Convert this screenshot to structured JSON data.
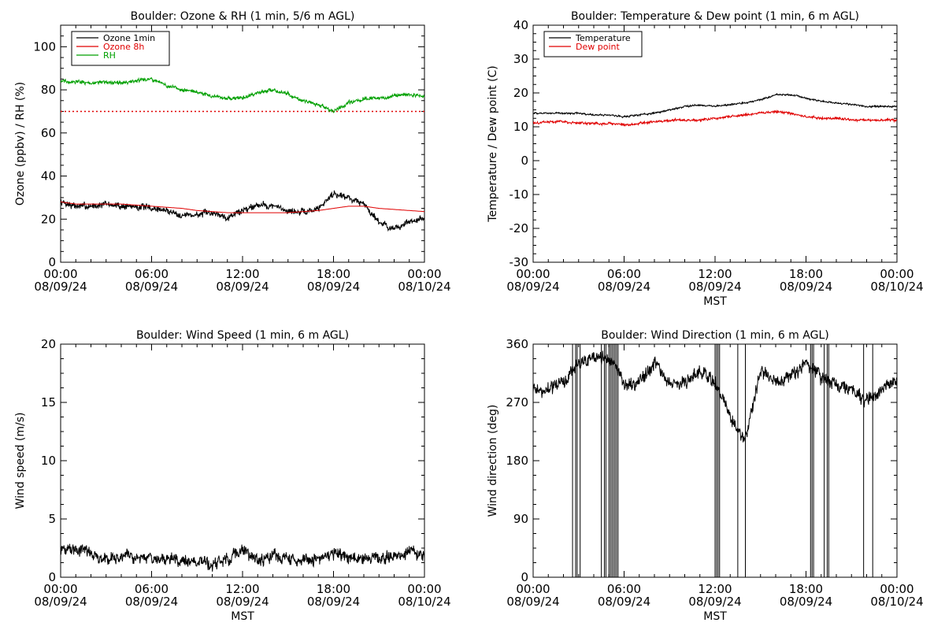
{
  "chart_data": [
    {
      "type": "line",
      "title": "Boulder: Ozone & RH (1 min, 5/6 m AGL)",
      "ylabel": "Ozone (ppbv) / RH (%)",
      "xlabel": "",
      "ylim": [
        0,
        110
      ],
      "yticks": [
        "0",
        "20",
        "40",
        "60",
        "80",
        "100"
      ],
      "ytick_values": [
        0,
        20,
        40,
        60,
        80,
        100
      ],
      "xticks": [
        {
          "time": "00:00",
          "date": "08/09/24"
        },
        {
          "time": "06:00",
          "date": "08/09/24"
        },
        {
          "time": "12:00",
          "date": "08/09/24"
        },
        {
          "time": "18:00",
          "date": "08/09/24"
        },
        {
          "time": "00:00",
          "date": "08/10/24"
        }
      ],
      "x_hours": [
        0,
        1,
        2,
        3,
        4,
        5,
        6,
        7,
        8,
        9,
        10,
        11,
        12,
        13,
        14,
        15,
        16,
        17,
        18,
        19,
        20,
        21,
        22,
        23,
        24
      ],
      "legend": [
        "Ozone 1min",
        "Ozone 8h",
        "RH"
      ],
      "legend_placement": "top-left",
      "reference_line": {
        "y": 70,
        "color": "#e00000",
        "style": "dotted"
      },
      "series": [
        {
          "name": "Ozone 1min",
          "color": "#000000",
          "noise": 1.8,
          "values": [
            28,
            26,
            26,
            27,
            26,
            26,
            25,
            24,
            22,
            22,
            23,
            21,
            24,
            27,
            26,
            24,
            23,
            25,
            32,
            30,
            27,
            19,
            15,
            19,
            20
          ]
        },
        {
          "name": "Ozone 8h",
          "color": "#e00000",
          "noise": 0,
          "values": [
            28,
            27,
            27,
            27,
            27,
            26.5,
            26,
            25.5,
            25,
            24,
            23.5,
            23,
            23,
            23,
            23,
            23,
            23.5,
            24,
            25,
            26,
            26,
            25,
            24.5,
            24,
            23.5
          ]
        },
        {
          "name": "RH",
          "color": "#00a000",
          "noise": 1.0,
          "values": [
            84,
            84,
            83,
            84,
            83,
            84,
            85,
            82,
            80,
            79,
            77,
            76,
            76,
            79,
            80,
            78,
            75,
            73,
            70,
            74,
            76,
            76,
            77,
            78,
            77
          ]
        }
      ]
    },
    {
      "type": "line",
      "title": "Boulder: Temperature & Dew point (1 min, 6 m AGL)",
      "ylabel": "Temperature / Dew point (C)",
      "xlabel": "MST",
      "ylim": [
        -30,
        40
      ],
      "yticks": [
        "-30",
        "-20",
        "-10",
        "0",
        "10",
        "20",
        "30",
        "40"
      ],
      "ytick_values": [
        -30,
        -20,
        -10,
        0,
        10,
        20,
        30,
        40
      ],
      "xticks": [
        {
          "time": "00:00",
          "date": "08/09/24"
        },
        {
          "time": "06:00",
          "date": "08/09/24"
        },
        {
          "time": "12:00",
          "date": "08/09/24"
        },
        {
          "time": "18:00",
          "date": "08/09/24"
        },
        {
          "time": "00:00",
          "date": "08/10/24"
        }
      ],
      "x_hours": [
        0,
        1,
        2,
        3,
        4,
        5,
        6,
        7,
        8,
        9,
        10,
        11,
        12,
        13,
        14,
        15,
        16,
        17,
        18,
        19,
        20,
        21,
        22,
        23,
        24
      ],
      "legend": [
        "Temperature",
        "Dew point"
      ],
      "legend_placement": "top-left",
      "series": [
        {
          "name": "Temperature",
          "color": "#000000",
          "noise": 0.3,
          "values": [
            14,
            14,
            14,
            14,
            13.5,
            13.5,
            13,
            13.5,
            14,
            15,
            16,
            16.5,
            16,
            16.5,
            17,
            18,
            19.5,
            19.5,
            18.5,
            17.5,
            17,
            16.5,
            16,
            16,
            16
          ]
        },
        {
          "name": "Dew point",
          "color": "#e00000",
          "noise": 0.4,
          "values": [
            11,
            11.5,
            11.5,
            11,
            11,
            11,
            10.5,
            11,
            11.5,
            12,
            12,
            12,
            12.5,
            13,
            13.5,
            14,
            14.5,
            14,
            13,
            12.5,
            12.5,
            12,
            12,
            12,
            12
          ]
        }
      ]
    },
    {
      "type": "line",
      "title": "Boulder: Wind Speed (1 min, 6 m AGL)",
      "ylabel": "Wind speed (m/s)",
      "xlabel": "MST",
      "ylim": [
        0,
        20
      ],
      "yticks": [
        "0",
        "5",
        "10",
        "15",
        "20"
      ],
      "ytick_values": [
        0,
        5,
        10,
        15,
        20
      ],
      "xticks": [
        {
          "time": "00:00",
          "date": "08/09/24"
        },
        {
          "time": "06:00",
          "date": "08/09/24"
        },
        {
          "time": "12:00",
          "date": "08/09/24"
        },
        {
          "time": "18:00",
          "date": "08/09/24"
        },
        {
          "time": "00:00",
          "date": "08/10/24"
        }
      ],
      "x_hours": [
        0,
        1,
        2,
        3,
        4,
        5,
        6,
        7,
        8,
        9,
        10,
        11,
        12,
        13,
        14,
        15,
        16,
        17,
        18,
        19,
        20,
        21,
        22,
        23,
        24
      ],
      "legend": [],
      "series": [
        {
          "name": "",
          "color": "#000000",
          "noise": 0.6,
          "min": 0,
          "values": [
            2.3,
            2.5,
            2.0,
            1.6,
            1.6,
            1.8,
            1.6,
            1.5,
            1.5,
            1.3,
            1.0,
            1.6,
            2.4,
            1.3,
            1.8,
            1.6,
            1.4,
            1.6,
            2.1,
            1.7,
            1.5,
            1.6,
            1.8,
            2.2,
            1.8
          ]
        }
      ]
    },
    {
      "type": "line",
      "title": "Boulder: Wind Direction (1 min, 6 m AGL)",
      "ylabel": "Wind direction (deg)",
      "xlabel": "MST",
      "ylim": [
        0,
        360
      ],
      "yticks": [
        "0",
        "90",
        "180",
        "270",
        "360"
      ],
      "ytick_values": [
        0,
        90,
        180,
        270,
        360
      ],
      "xticks": [
        {
          "time": "00:00",
          "date": "08/09/24"
        },
        {
          "time": "06:00",
          "date": "08/09/24"
        },
        {
          "time": "12:00",
          "date": "08/09/24"
        },
        {
          "time": "18:00",
          "date": "08/09/24"
        },
        {
          "time": "00:00",
          "date": "08/10/24"
        }
      ],
      "x_hours": [
        0,
        1,
        2,
        3,
        4,
        5,
        6,
        7,
        8,
        9,
        10,
        11,
        12,
        13,
        14,
        15,
        16,
        17,
        18,
        19,
        20,
        21,
        22,
        23,
        24
      ],
      "legend": [],
      "wrap_hours": [
        2.6,
        2.8,
        2.9,
        3.1,
        4.5,
        4.7,
        4.8,
        5.0,
        5.1,
        5.2,
        5.3,
        5.4,
        5.5,
        5.6,
        12.0,
        12.1,
        12.2,
        12.3,
        13.5,
        14.0,
        18.3,
        18.4,
        18.5,
        19.2,
        19.4,
        19.5,
        21.8,
        22.4
      ],
      "series": [
        {
          "name": "",
          "color": "#000000",
          "noise": 12,
          "min": 0,
          "max": 360,
          "values": [
            290,
            290,
            300,
            330,
            340,
            340,
            300,
            300,
            330,
            300,
            300,
            320,
            300,
            250,
            210,
            320,
            300,
            310,
            330,
            310,
            300,
            290,
            270,
            290,
            300
          ]
        }
      ]
    }
  ]
}
